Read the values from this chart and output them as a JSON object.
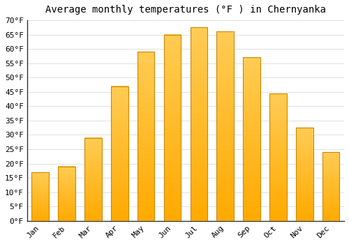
{
  "title": "Average monthly temperatures (°F ) in Chernyanka",
  "months": [
    "Jan",
    "Feb",
    "Mar",
    "Apr",
    "May",
    "Jun",
    "Jul",
    "Aug",
    "Sep",
    "Oct",
    "Nov",
    "Dec"
  ],
  "values": [
    17,
    19,
    29,
    47,
    59,
    65,
    67.5,
    66,
    57,
    44.5,
    32.5,
    24
  ],
  "bar_color_top": "#FFCC55",
  "bar_color_bottom": "#FFAA00",
  "bar_edge_color": "#CC8800",
  "ylim": [
    0,
    70
  ],
  "yticks": [
    0,
    5,
    10,
    15,
    20,
    25,
    30,
    35,
    40,
    45,
    50,
    55,
    60,
    65,
    70
  ],
  "ytick_labels": [
    "0°F",
    "5°F",
    "10°F",
    "15°F",
    "20°F",
    "25°F",
    "30°F",
    "35°F",
    "40°F",
    "45°F",
    "50°F",
    "55°F",
    "60°F",
    "65°F",
    "70°F"
  ],
  "background_color": "#ffffff",
  "grid_color": "#e0e0e0",
  "title_fontsize": 10,
  "tick_fontsize": 8
}
